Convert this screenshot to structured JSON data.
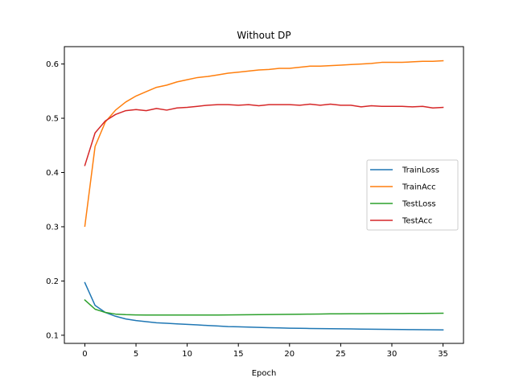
{
  "chart_data": {
    "type": "line",
    "title": "Without DP",
    "xlabel": "Epoch",
    "ylabel": "",
    "xlim": [
      -2,
      37
    ],
    "ylim": [
      0.085,
      0.632
    ],
    "xticks": [
      0,
      5,
      10,
      15,
      20,
      25,
      30,
      35
    ],
    "yticks": [
      0.1,
      0.2,
      0.3,
      0.4,
      0.5,
      0.6
    ],
    "grid": false,
    "legend_position": "center-right",
    "x": [
      0,
      1,
      2,
      3,
      4,
      5,
      6,
      7,
      8,
      9,
      10,
      11,
      12,
      13,
      14,
      15,
      16,
      17,
      18,
      19,
      20,
      21,
      22,
      23,
      24,
      25,
      26,
      27,
      28,
      29,
      30,
      31,
      32,
      33,
      34,
      35
    ],
    "series": [
      {
        "name": "TrainLoss",
        "color": "#1f77b4",
        "values": [
          0.197,
          0.155,
          0.142,
          0.135,
          0.13,
          0.127,
          0.125,
          0.123,
          0.122,
          0.121,
          0.12,
          0.119,
          0.118,
          0.117,
          0.116,
          0.1155,
          0.115,
          0.1145,
          0.114,
          0.1135,
          0.113,
          0.1128,
          0.1125,
          0.1122,
          0.112,
          0.1118,
          0.1116,
          0.1114,
          0.1112,
          0.111,
          0.1108,
          0.1106,
          0.1104,
          0.1102,
          0.11,
          0.1098
        ]
      },
      {
        "name": "TrainAcc",
        "color": "#ff7f0e",
        "values": [
          0.301,
          0.448,
          0.493,
          0.515,
          0.53,
          0.541,
          0.549,
          0.557,
          0.561,
          0.567,
          0.571,
          0.575,
          0.577,
          0.58,
          0.583,
          0.585,
          0.587,
          0.589,
          0.59,
          0.592,
          0.592,
          0.594,
          0.596,
          0.596,
          0.597,
          0.598,
          0.599,
          0.6,
          0.601,
          0.603,
          0.603,
          0.603,
          0.604,
          0.605,
          0.605,
          0.606
        ]
      },
      {
        "name": "TestLoss",
        "color": "#2ca02c",
        "values": [
          0.165,
          0.148,
          0.142,
          0.139,
          0.138,
          0.1375,
          0.1373,
          0.1372,
          0.1372,
          0.1372,
          0.1372,
          0.1372,
          0.1372,
          0.1373,
          0.1374,
          0.1376,
          0.1378,
          0.138,
          0.1382,
          0.1384,
          0.1386,
          0.1388,
          0.139,
          0.1392,
          0.1394,
          0.1395,
          0.1396,
          0.1397,
          0.1398,
          0.1399,
          0.14,
          0.1401,
          0.1402,
          0.1403,
          0.1404,
          0.1405
        ]
      },
      {
        "name": "TestAcc",
        "color": "#d62728",
        "values": [
          0.413,
          0.473,
          0.495,
          0.507,
          0.514,
          0.516,
          0.514,
          0.518,
          0.515,
          0.519,
          0.52,
          0.522,
          0.524,
          0.525,
          0.525,
          0.524,
          0.525,
          0.523,
          0.525,
          0.525,
          0.525,
          0.524,
          0.526,
          0.524,
          0.526,
          0.524,
          0.524,
          0.521,
          0.523,
          0.522,
          0.522,
          0.522,
          0.521,
          0.522,
          0.519,
          0.52
        ]
      }
    ]
  }
}
